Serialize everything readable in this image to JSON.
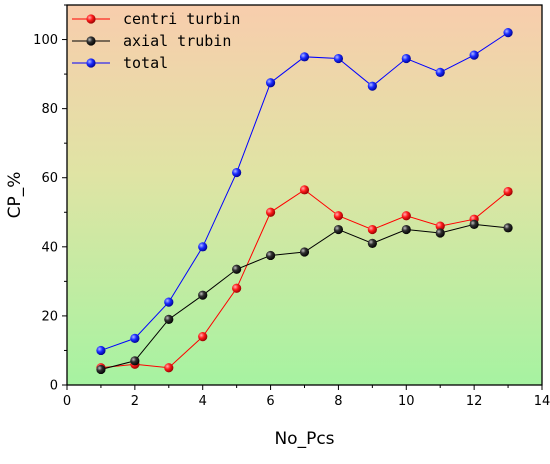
{
  "chart_data": {
    "type": "line",
    "title": "",
    "xlabel": "No_Pcs",
    "ylabel": "CP_%",
    "xlim": [
      0,
      14
    ],
    "ylim": [
      0,
      110
    ],
    "xticks": [
      0,
      2,
      4,
      6,
      8,
      10,
      12,
      14
    ],
    "yticks": [
      0,
      20,
      40,
      60,
      80,
      100
    ],
    "grid": false,
    "legend_position": "top-left",
    "background": "vertical gradient from peach (top) to light green (bottom)",
    "x": [
      1,
      2,
      3,
      4,
      5,
      6,
      7,
      8,
      9,
      10,
      11,
      12,
      13
    ],
    "series": [
      {
        "name": "centri turbin",
        "color": "#ff0000",
        "marker": "sphere",
        "values": [
          5,
          6,
          5,
          14,
          28,
          50,
          56.5,
          49,
          45,
          49,
          46,
          48,
          56
        ]
      },
      {
        "name": "axial trubin",
        "color": "#000000",
        "marker": "sphere",
        "values": [
          4.5,
          7,
          19,
          26,
          33.5,
          37.5,
          38.5,
          45,
          41,
          45,
          44,
          46.5,
          45.5
        ]
      },
      {
        "name": "total",
        "color": "#0000ff",
        "marker": "sphere",
        "values": [
          10,
          13.5,
          24,
          40,
          61.5,
          87.5,
          95,
          94.5,
          86.5,
          94.5,
          90.5,
          95.5,
          102
        ]
      }
    ]
  }
}
